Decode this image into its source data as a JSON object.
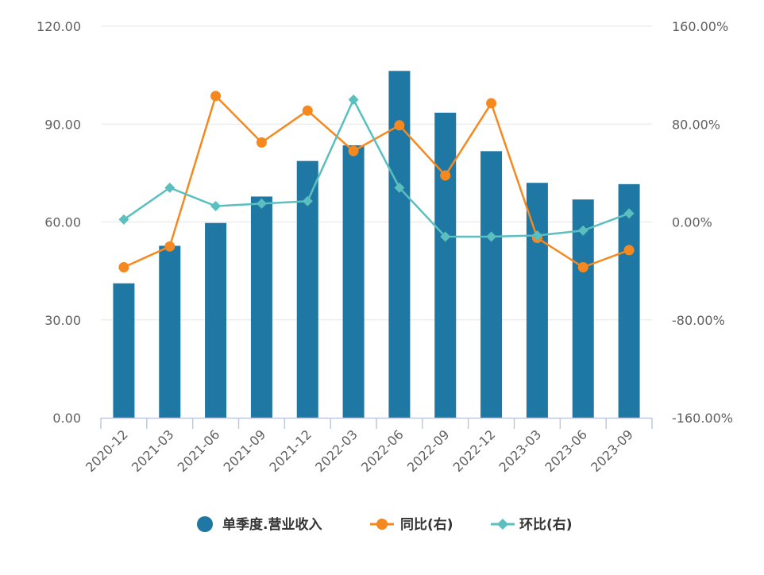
{
  "chart_data": {
    "type": "bar",
    "categories": [
      "2020-12",
      "2021-03",
      "2021-06",
      "2021-09",
      "2021-12",
      "2022-03",
      "2022-06",
      "2022-09",
      "2022-12",
      "2023-03",
      "2023-06",
      "2023-09"
    ],
    "left_axis": {
      "ylim": [
        0,
        120
      ],
      "ticks": [
        "0.00",
        "30.00",
        "60.00",
        "90.00",
        "120.00"
      ]
    },
    "right_axis": {
      "ylim": [
        -160,
        160
      ],
      "unit": "%",
      "ticks": [
        "-160.00%",
        "-80.00%",
        "0.00%",
        "80.00%",
        "160.00%"
      ]
    },
    "grid": true,
    "legend_position": "bottom",
    "series": [
      {
        "name": "单季度.营业收入",
        "type": "bar",
        "axis": "left",
        "color": "#1f77a4",
        "values": [
          41.2,
          52.7,
          59.7,
          67.8,
          78.7,
          83.5,
          106.3,
          93.5,
          81.7,
          72.0,
          66.9,
          71.6
        ]
      },
      {
        "name": "同比(右)",
        "type": "line",
        "axis": "right",
        "color": "#f5891f",
        "marker": "circle",
        "values": [
          -37,
          -20,
          103,
          65,
          91,
          58,
          79,
          38,
          97,
          -13,
          -37,
          -23
        ]
      },
      {
        "name": "环比(右)",
        "type": "line",
        "axis": "right",
        "color": "#5bbfbf",
        "marker": "diamond",
        "values": [
          2,
          28,
          13,
          15,
          17,
          100,
          28,
          -12,
          -12,
          -11,
          -7,
          7
        ]
      }
    ]
  }
}
